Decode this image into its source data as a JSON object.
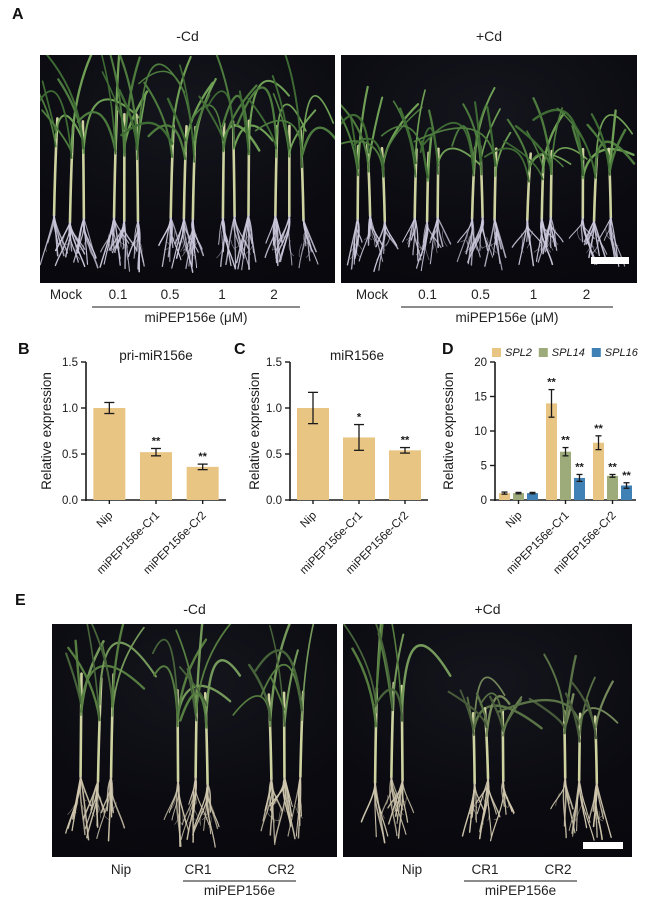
{
  "figure": {
    "panels": {
      "A": {
        "letter": "A",
        "left_title": "-Cd",
        "right_title": "+Cd",
        "mock_label": "Mock",
        "doses": [
          "0.1",
          "0.5",
          "1",
          "2"
        ],
        "treatment_caption": "miPEP156e (μM)"
      },
      "B": {
        "letter": "B"
      },
      "C": {
        "letter": "C"
      },
      "D": {
        "letter": "D"
      },
      "E": {
        "letter": "E",
        "left_title": "-Cd",
        "right_title": "+Cd",
        "genotypes": [
          "Nip",
          "CR1",
          "CR2"
        ],
        "treatment_caption": "miPEP156e"
      }
    }
  },
  "chart_data": [
    {
      "type": "bar",
      "panel": "B",
      "title": "pri-miR156e",
      "ylabel": "Relative expression",
      "ylim": [
        0,
        1.5
      ],
      "yticks": [
        0,
        0.5,
        1.0,
        1.5
      ],
      "categories": [
        "Nip",
        "miPEP156e-Cr1",
        "miPEP156e-Cr2"
      ],
      "values": [
        1.0,
        0.52,
        0.36
      ],
      "errors": [
        0.06,
        0.04,
        0.03
      ],
      "sig": [
        "",
        "**",
        "**"
      ],
      "bar_color": "#e9c584",
      "grid": false,
      "legend_position": "none"
    },
    {
      "type": "bar",
      "panel": "C",
      "title": "miR156e",
      "ylabel": "Relative expression",
      "ylim": [
        0,
        1.5
      ],
      "yticks": [
        0,
        0.5,
        1.0,
        1.5
      ],
      "categories": [
        "Nip",
        "miPEP156e-Cr1",
        "miPEP156e-Cr2"
      ],
      "values": [
        1.0,
        0.68,
        0.54
      ],
      "errors": [
        0.17,
        0.14,
        0.03
      ],
      "sig": [
        "",
        "*",
        "**"
      ],
      "bar_color": "#e9c584",
      "grid": false,
      "legend_position": "none"
    },
    {
      "type": "bar",
      "panel": "D",
      "title": "",
      "ylabel": "Relative expression",
      "ylim": [
        0,
        20
      ],
      "yticks": [
        0,
        5,
        10,
        15,
        20
      ],
      "categories": [
        "Nip",
        "miPEP156e-Cr1",
        "miPEP156e-Cr2"
      ],
      "series": [
        {
          "name": "SPL2",
          "color": "#e9c584",
          "values": [
            1.0,
            14.0,
            8.3
          ],
          "errors": [
            0.15,
            2.0,
            1.0
          ],
          "sig": [
            "",
            "**",
            "**"
          ]
        },
        {
          "name": "SPL14",
          "color": "#9cab79",
          "values": [
            1.0,
            7.0,
            3.5
          ],
          "errors": [
            0.1,
            0.6,
            0.2
          ],
          "sig": [
            "",
            "**",
            "**"
          ]
        },
        {
          "name": "SPL16",
          "color": "#3f81b5",
          "values": [
            1.0,
            3.2,
            2.1
          ],
          "errors": [
            0.1,
            0.5,
            0.4
          ],
          "sig": [
            "",
            "**",
            "**"
          ]
        }
      ],
      "grid": false,
      "legend_position": "top"
    }
  ]
}
